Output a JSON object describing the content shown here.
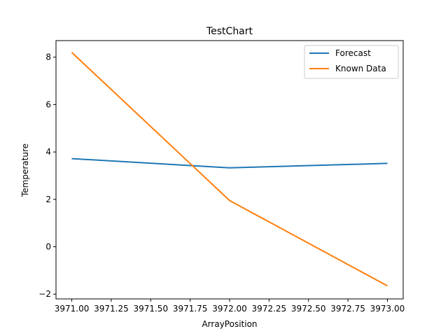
{
  "chart_data": {
    "type": "line",
    "title": "TestChart",
    "xlabel": "ArrayPosition",
    "ylabel": "Temperature",
    "x": [
      3971.0,
      3972.0,
      3973.0
    ],
    "xlim": [
      3970.9,
      3973.1
    ],
    "ylim": [
      -2.2,
      8.7
    ],
    "xticks": [
      3971.0,
      3971.25,
      3971.5,
      3971.75,
      3972.0,
      3972.25,
      3972.5,
      3972.75,
      3973.0
    ],
    "xtick_labels": [
      "3971.00",
      "3971.25",
      "3971.50",
      "3971.75",
      "3972.00",
      "3972.25",
      "3972.50",
      "3972.75",
      "3973.00"
    ],
    "yticks": [
      -2,
      0,
      2,
      4,
      6,
      8
    ],
    "ytick_labels": [
      "−2",
      "0",
      "2",
      "4",
      "6",
      "8"
    ],
    "grid": false,
    "legend_position": "top-right",
    "series": [
      {
        "name": "Forecast",
        "color": "#1f77b4",
        "values": [
          3.72,
          3.33,
          3.52
        ]
      },
      {
        "name": "Known Data",
        "color": "#ff7f0e",
        "values": [
          8.2,
          1.95,
          -1.65
        ]
      }
    ]
  }
}
